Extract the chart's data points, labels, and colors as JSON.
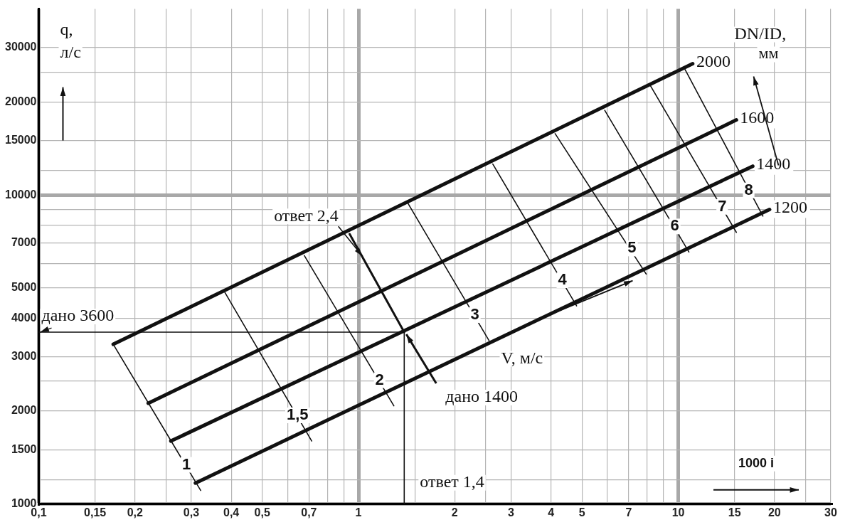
{
  "chart_data": {
    "type": "line",
    "xlabel": "1000 i",
    "ylabel": "q, л/с",
    "log": "xy",
    "grid": true,
    "legend": false,
    "marker": "none",
    "xlim": [
      0.1,
      30
    ],
    "ylim": [
      1000,
      40000
    ],
    "xticks": [
      {
        "value": 0.1,
        "label": "0,1"
      },
      {
        "value": 0.15,
        "label": "0,15"
      },
      {
        "value": 0.2,
        "label": "0,2"
      },
      {
        "value": 0.25,
        "label": null
      },
      {
        "value": 0.3,
        "label": "0,3"
      },
      {
        "value": 0.4,
        "label": "0,4"
      },
      {
        "value": 0.5,
        "label": "0,5"
      },
      {
        "value": 0.6,
        "label": null
      },
      {
        "value": 0.7,
        "label": "0,7"
      },
      {
        "value": 0.8,
        "label": null
      },
      {
        "value": 0.9,
        "label": null
      },
      1,
      {
        "value": 1.5,
        "label": null
      },
      2,
      {
        "value": 2.5,
        "label": null
      },
      3,
      4,
      5,
      {
        "value": 6,
        "label": null
      },
      7,
      {
        "value": 8,
        "label": null
      },
      {
        "value": 9,
        "label": null
      },
      10,
      15,
      20,
      {
        "value": 25,
        "label": null
      },
      30
    ],
    "yticks": [
      1000,
      {
        "value": 1200,
        "label": null
      },
      1500,
      2000,
      {
        "value": 2500,
        "label": null
      },
      3000,
      4000,
      5000,
      {
        "value": 6000,
        "label": null
      },
      7000,
      {
        "value": 8000,
        "label": null
      },
      {
        "value": 9000,
        "label": null
      },
      10000,
      {
        "value": 12000,
        "label": null
      },
      15000,
      20000,
      {
        "value": 25000,
        "label": null
      },
      30000
    ],
    "series": [
      {
        "name": "2000",
        "color": "#111111",
        "x": [
          0.171,
          11.1
        ],
        "values": [
          3290,
          26600
        ]
      },
      {
        "name": "1600",
        "color": "#111111",
        "x": [
          0.22,
          15.2
        ],
        "values": [
          2120,
          17500
        ]
      },
      {
        "name": "1400",
        "color": "#111111",
        "x": [
          0.259,
          17.1
        ],
        "values": [
          1600,
          12400
        ]
      },
      {
        "name": "1200",
        "color": "#111111",
        "x": [
          0.309,
          19.3
        ],
        "values": [
          1170,
          8980
        ]
      },
      {
        "name": "1",
        "color": "#111111",
        "x": [
          0.171,
          0.321
        ],
        "values": [
          3290,
          1107
        ]
      },
      {
        "name": "1,5",
        "color": "#111111",
        "x": [
          0.382,
          0.714
        ],
        "values": [
          4840,
          1600
        ]
      },
      {
        "name": "2",
        "color": "#111111",
        "x": [
          0.677,
          1.29
        ],
        "values": [
          6370,
          2080
        ]
      },
      {
        "name": "3",
        "color": "#111111",
        "x": [
          1.43,
          2.56
        ],
        "values": [
          9380,
          3380
        ]
      },
      {
        "name": "4",
        "color": "#111111",
        "x": [
          2.63,
          4.81
        ],
        "values": [
          12600,
          4380
        ]
      },
      {
        "name": "5",
        "color": "#111111",
        "x": [
          4.12,
          7.94
        ],
        "values": [
          15800,
          5550
        ]
      },
      {
        "name": "6",
        "color": "#111111",
        "x": [
          5.89,
          10.8
        ],
        "values": [
          18800,
          6540
        ]
      },
      {
        "name": "7",
        "color": "#111111",
        "x": [
          8.12,
          15.2
        ],
        "values": [
          22900,
          7570
        ]
      },
      {
        "name": "8",
        "color": "#111111",
        "x": [
          10.5,
          18.4
        ],
        "values": [
          25500,
          8550
        ]
      },
      {
        "color": "#111111",
        "x": [
          0.938,
          1.39
        ],
        "values": [
          7480,
          3600
        ]
      },
      {
        "color": "#111111",
        "x": [
          0.1,
          1.39
        ],
        "values": [
          3600,
          3600
        ]
      },
      {
        "color": "#111111",
        "x": [
          1.39,
          1.39
        ],
        "values": [
          3600,
          1000
        ]
      }
    ],
    "annotations": [
      {
        "text": "ответ 2,4",
        "x": 1.04,
        "y": 6270
      },
      {
        "text": "дано 3600",
        "x": 0.1,
        "y": 3600
      },
      {
        "text": "дано 1400",
        "x": 1.39,
        "y": 3600
      },
      {
        "text": "ответ 1,4",
        "x": 1.39,
        "y": 1000
      },
      "V, м/с",
      "DN/ID, мм"
    ]
  }
}
